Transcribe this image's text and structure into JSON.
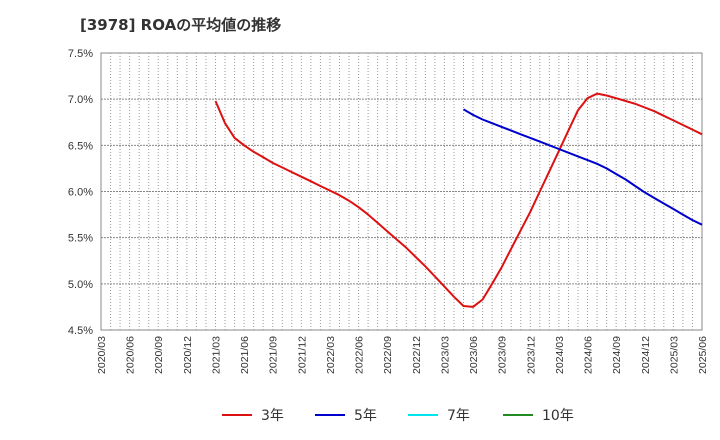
{
  "chart_data": {
    "type": "line",
    "title": "[3978]  ROAの平均値の推移",
    "ylim": [
      4.5,
      7.5
    ],
    "y_ticks": [
      {
        "value": 7.5,
        "label": "7.5%"
      },
      {
        "value": 7.0,
        "label": "7.0%"
      },
      {
        "value": 6.5,
        "label": "6.5%"
      },
      {
        "value": 6.0,
        "label": "6.0%"
      },
      {
        "value": 5.5,
        "label": "5.5%"
      },
      {
        "value": 5.0,
        "label": "5.0%"
      },
      {
        "value": 4.5,
        "label": "4.5%"
      }
    ],
    "x_ticks": [
      "2020/03",
      "2020/06",
      "2020/09",
      "2020/12",
      "2021/03",
      "2021/06",
      "2021/09",
      "2021/12",
      "2022/03",
      "2022/06",
      "2022/09",
      "2022/12",
      "2023/03",
      "2023/06",
      "2023/09",
      "2023/12",
      "2024/03",
      "2024/06",
      "2024/09",
      "2024/12",
      "2025/03",
      "2025/06"
    ],
    "grid": true,
    "legend_position": "bottom",
    "series": [
      {
        "name": "3年",
        "color": "#dd1111",
        "points": [
          [
            "2021/03",
            6.98
          ],
          [
            "2021/04",
            6.74
          ],
          [
            "2021/05",
            6.58
          ],
          [
            "2021/06",
            6.5
          ],
          [
            "2021/07",
            6.43
          ],
          [
            "2021/08",
            6.37
          ],
          [
            "2021/09",
            6.31
          ],
          [
            "2021/10",
            6.26
          ],
          [
            "2021/11",
            6.21
          ],
          [
            "2021/12",
            6.16
          ],
          [
            "2022/01",
            6.11
          ],
          [
            "2022/02",
            6.06
          ],
          [
            "2022/03",
            6.01
          ],
          [
            "2022/04",
            5.96
          ],
          [
            "2022/05",
            5.9
          ],
          [
            "2022/06",
            5.83
          ],
          [
            "2022/07",
            5.75
          ],
          [
            "2022/08",
            5.66
          ],
          [
            "2022/09",
            5.57
          ],
          [
            "2022/10",
            5.48
          ],
          [
            "2022/11",
            5.39
          ],
          [
            "2022/12",
            5.29
          ],
          [
            "2023/01",
            5.19
          ],
          [
            "2023/02",
            5.08
          ],
          [
            "2023/03",
            4.97
          ],
          [
            "2023/04",
            4.86
          ],
          [
            "2023/05",
            4.76
          ],
          [
            "2023/06",
            4.75
          ],
          [
            "2023/07",
            4.83
          ],
          [
            "2023/08",
            5.0
          ],
          [
            "2023/09",
            5.18
          ],
          [
            "2023/10",
            5.38
          ],
          [
            "2023/11",
            5.58
          ],
          [
            "2023/12",
            5.78
          ],
          [
            "2024/01",
            6.0
          ],
          [
            "2024/02",
            6.22
          ],
          [
            "2024/03",
            6.44
          ],
          [
            "2024/04",
            6.66
          ],
          [
            "2024/05",
            6.88
          ],
          [
            "2024/06",
            7.01
          ],
          [
            "2024/07",
            7.06
          ],
          [
            "2024/08",
            7.04
          ],
          [
            "2024/09",
            7.01
          ],
          [
            "2024/10",
            6.98
          ],
          [
            "2024/11",
            6.95
          ],
          [
            "2024/12",
            6.91
          ],
          [
            "2025/01",
            6.87
          ],
          [
            "2025/02",
            6.82
          ],
          [
            "2025/03",
            6.77
          ],
          [
            "2025/04",
            6.72
          ],
          [
            "2025/05",
            6.67
          ],
          [
            "2025/06",
            6.62
          ]
        ]
      },
      {
        "name": "5年",
        "color": "#0000cc",
        "points": [
          [
            "2023/05",
            6.89
          ],
          [
            "2023/06",
            6.83
          ],
          [
            "2023/07",
            6.78
          ],
          [
            "2023/08",
            6.74
          ],
          [
            "2023/09",
            6.7
          ],
          [
            "2023/10",
            6.66
          ],
          [
            "2023/11",
            6.62
          ],
          [
            "2023/12",
            6.58
          ],
          [
            "2024/01",
            6.54
          ],
          [
            "2024/02",
            6.5
          ],
          [
            "2024/03",
            6.46
          ],
          [
            "2024/04",
            6.42
          ],
          [
            "2024/05",
            6.38
          ],
          [
            "2024/06",
            6.34
          ],
          [
            "2024/07",
            6.3
          ],
          [
            "2024/08",
            6.25
          ],
          [
            "2024/09",
            6.19
          ],
          [
            "2024/10",
            6.13
          ],
          [
            "2024/11",
            6.06
          ],
          [
            "2024/12",
            5.99
          ],
          [
            "2025/01",
            5.93
          ],
          [
            "2025/02",
            5.87
          ],
          [
            "2025/03",
            5.81
          ],
          [
            "2025/04",
            5.75
          ],
          [
            "2025/05",
            5.69
          ],
          [
            "2025/06",
            5.64
          ]
        ]
      },
      {
        "name": "7年",
        "color": "#00e5ee",
        "points": []
      },
      {
        "name": "10年",
        "color": "#228b22",
        "points": []
      }
    ]
  }
}
